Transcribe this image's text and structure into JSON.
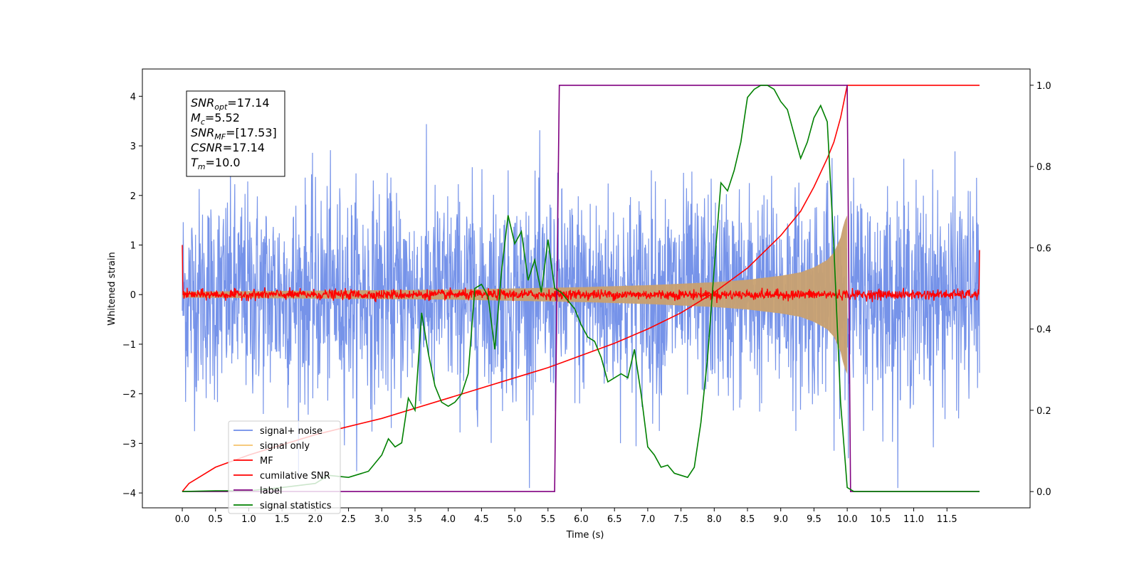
{
  "chart_data": {
    "type": "line",
    "xlabel": "Time (s)",
    "ylabel_left": "Whitened strain",
    "ylabel_right": "",
    "xlim": [
      -0.6,
      12.75
    ],
    "ylim_left": [
      -4.3,
      4.55
    ],
    "ylim_right": [
      -0.04,
      1.04
    ],
    "x_ticks": [
      0.0,
      0.5,
      1.0,
      1.5,
      2.0,
      2.5,
      3.0,
      3.5,
      4.0,
      4.5,
      5.0,
      5.5,
      6.0,
      6.5,
      7.0,
      7.5,
      8.0,
      8.5,
      9.0,
      9.5,
      10.0,
      10.5,
      11.0,
      11.5
    ],
    "x_tick_labels": [
      "0.0",
      "0.5",
      "1.0",
      "1.5",
      "2.0",
      "2.5",
      "3.0",
      "3.5",
      "4.0",
      "4.5",
      "5.0",
      "5.5",
      "6.0",
      "6.5",
      "7.0",
      "7.5",
      "8.0",
      "8.5",
      "9.0",
      "9.5",
      "10.0",
      "10.5",
      "11.0",
      "11.5"
    ],
    "y_ticks_left": [
      -4,
      -3,
      -2,
      -1,
      0,
      1,
      2,
      3,
      4
    ],
    "y_tick_labels_left": [
      "−4",
      "−3",
      "−2",
      "−1",
      "0",
      "1",
      "2",
      "3",
      "4"
    ],
    "y_ticks_right": [
      0.0,
      0.2,
      0.4,
      0.6,
      0.8,
      1.0
    ],
    "y_tick_labels_right": [
      "0.0",
      "0.2",
      "0.4",
      "0.6",
      "0.8",
      "1.0"
    ],
    "grid": false,
    "legend_position": "lower-left",
    "legend": [
      {
        "name": "signal+ noise",
        "color": "#6f8de8"
      },
      {
        "name": "signal only",
        "color": "#f5c26b"
      },
      {
        "name": "MF",
        "color": "#ff0000"
      },
      {
        "name": "cumilative SNR",
        "color": "#ff0000"
      },
      {
        "name": "label",
        "color": "#800080"
      },
      {
        "name": "signal statistics",
        "color": "#008000"
      }
    ],
    "annotation": [
      {
        "base": "SNR",
        "sub": "opt",
        "value": "=17.14"
      },
      {
        "base": "M",
        "sub": "c",
        "value": "=5.52"
      },
      {
        "base": "SNR",
        "sub": "MF",
        "value": "=[17.53]"
      },
      {
        "base": "CSNR",
        "sub": "",
        "value": "=17.14"
      },
      {
        "base": "T",
        "sub": "m",
        "value": "=10.0"
      }
    ],
    "series": [
      {
        "name": "signal+ noise",
        "axis": "left",
        "color": "#6f8de8",
        "x_range": [
          0.0,
          11.99
        ],
        "envelope": 3.9,
        "note_type": "noise"
      },
      {
        "name": "signal only",
        "axis": "left",
        "color": "#c8a070",
        "x_range": [
          0.0,
          10.0
        ],
        "amplitude_x": [
          0.0,
          2.0,
          4.0,
          6.0,
          7.0,
          8.0,
          8.5,
          9.0,
          9.3,
          9.5,
          9.7,
          9.8,
          9.9,
          9.95,
          10.0
        ],
        "amplitude_y": [
          0.06,
          0.08,
          0.1,
          0.15,
          0.19,
          0.25,
          0.3,
          0.38,
          0.45,
          0.55,
          0.7,
          0.85,
          1.15,
          1.45,
          1.6
        ]
      },
      {
        "name": "MF",
        "axis": "left",
        "color": "#ff0000",
        "x_range": [
          0.0,
          11.99
        ],
        "envelope": 0.12
      },
      {
        "name": "cumilative SNR",
        "axis": "right",
        "color": "#ff0000",
        "x": [
          0.0,
          0.1,
          0.3,
          0.5,
          1.0,
          1.5,
          2.0,
          2.5,
          3.0,
          3.5,
          4.0,
          4.5,
          5.0,
          5.5,
          6.0,
          6.5,
          7.0,
          7.5,
          8.0,
          8.5,
          9.0,
          9.3,
          9.5,
          9.7,
          9.8,
          9.9,
          9.95,
          10.0,
          10.5,
          11.0,
          11.5,
          11.99
        ],
        "y": [
          0.0,
          0.02,
          0.04,
          0.06,
          0.09,
          0.115,
          0.14,
          0.16,
          0.18,
          0.205,
          0.23,
          0.255,
          0.28,
          0.305,
          0.335,
          0.365,
          0.4,
          0.44,
          0.49,
          0.55,
          0.63,
          0.69,
          0.75,
          0.82,
          0.86,
          0.92,
          0.96,
          1.0,
          1.0,
          1.0,
          1.0,
          1.0
        ]
      },
      {
        "name": "label",
        "axis": "right",
        "color": "#800080",
        "x": [
          0.0,
          5.6,
          5.67,
          10.0,
          10.05,
          11.99
        ],
        "y": [
          0.0,
          0.0,
          1.0,
          1.0,
          0.0,
          0.0
        ]
      },
      {
        "name": "signal statistics",
        "axis": "right",
        "color": "#008000",
        "x": [
          0.0,
          0.5,
          1.0,
          1.5,
          2.0,
          2.2,
          2.5,
          2.8,
          3.0,
          3.1,
          3.2,
          3.3,
          3.4,
          3.5,
          3.6,
          3.7,
          3.8,
          3.9,
          4.0,
          4.1,
          4.2,
          4.3,
          4.4,
          4.5,
          4.6,
          4.7,
          4.8,
          4.9,
          5.0,
          5.1,
          5.2,
          5.3,
          5.4,
          5.5,
          5.6,
          5.7,
          5.8,
          5.9,
          6.0,
          6.1,
          6.2,
          6.3,
          6.4,
          6.5,
          6.6,
          6.7,
          6.8,
          6.9,
          7.0,
          7.1,
          7.2,
          7.3,
          7.4,
          7.5,
          7.6,
          7.7,
          7.8,
          7.9,
          8.0,
          8.1,
          8.2,
          8.3,
          8.4,
          8.5,
          8.6,
          8.7,
          8.8,
          8.9,
          9.0,
          9.1,
          9.2,
          9.3,
          9.4,
          9.5,
          9.6,
          9.7,
          9.8,
          9.9,
          10.0,
          10.1,
          10.5,
          11.0,
          11.5,
          11.99
        ],
        "y": [
          0.0,
          0.002,
          0.002,
          0.01,
          0.02,
          0.04,
          0.035,
          0.05,
          0.09,
          0.13,
          0.11,
          0.12,
          0.23,
          0.2,
          0.44,
          0.34,
          0.26,
          0.22,
          0.21,
          0.22,
          0.24,
          0.29,
          0.5,
          0.51,
          0.48,
          0.35,
          0.54,
          0.68,
          0.61,
          0.64,
          0.52,
          0.57,
          0.49,
          0.62,
          0.5,
          0.49,
          0.47,
          0.45,
          0.41,
          0.38,
          0.37,
          0.33,
          0.27,
          0.28,
          0.29,
          0.28,
          0.35,
          0.24,
          0.11,
          0.09,
          0.06,
          0.065,
          0.045,
          0.04,
          0.035,
          0.06,
          0.17,
          0.33,
          0.55,
          0.76,
          0.74,
          0.79,
          0.86,
          0.97,
          0.99,
          1.0,
          1.0,
          0.99,
          0.96,
          0.94,
          0.88,
          0.82,
          0.86,
          0.92,
          0.95,
          0.91,
          0.6,
          0.22,
          0.01,
          0.0,
          0.0,
          0.0,
          0.0,
          0.0
        ]
      }
    ]
  }
}
